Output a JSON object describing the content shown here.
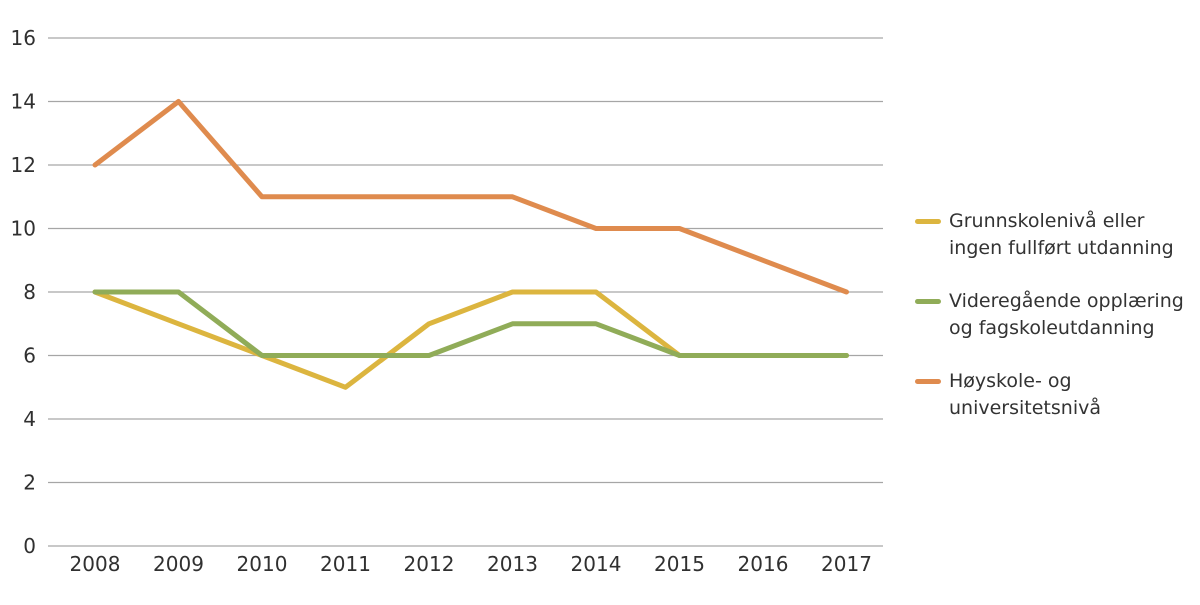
{
  "chart_data": {
    "type": "line",
    "title": "",
    "xlabel": "",
    "ylabel": "",
    "x": [
      2008,
      2009,
      2010,
      2011,
      2012,
      2013,
      2014,
      2015,
      2016,
      2017
    ],
    "series": [
      {
        "name": "Grunnskolenivå eller ingen fullført utdanning",
        "color": "#DCB53F",
        "values": [
          8,
          7,
          6,
          5,
          7,
          8,
          8,
          6,
          6,
          6
        ]
      },
      {
        "name": "Videregående opplæring og fagskoleutdanning",
        "color": "#90AC58",
        "values": [
          8,
          8,
          6,
          6,
          6,
          7,
          7,
          6,
          6,
          6
        ]
      },
      {
        "name": "Høyskole- og universitetsnivå",
        "color": "#DF8B4E",
        "values": [
          12,
          14,
          11,
          11,
          11,
          11,
          10,
          10,
          9,
          8
        ]
      }
    ],
    "ylim": [
      0,
      16
    ],
    "y_ticks": [
      0,
      2,
      4,
      6,
      8,
      10,
      12,
      14,
      16
    ],
    "grid": true,
    "legend_position": "right"
  },
  "axes": {
    "x_labels": [
      "2008",
      "2009",
      "2010",
      "2011",
      "2012",
      "2013",
      "2014",
      "2015",
      "2016",
      "2017"
    ],
    "y_labels": [
      "0",
      "2",
      "4",
      "6",
      "8",
      "10",
      "12",
      "14",
      "16"
    ]
  },
  "legend": {
    "items": [
      {
        "lines": [
          "Grunnskolenivå eller",
          "ingen fullført utdanning"
        ],
        "color": "#DCB53F"
      },
      {
        "lines": [
          "Videregående opplæring",
          "og fagskoleutdanning"
        ],
        "color": "#90AC58"
      },
      {
        "lines": [
          "Høyskole- og",
          "universitetsnivå"
        ],
        "color": "#DF8B4E"
      }
    ]
  },
  "colors": {
    "gridline": "#A6A6A6",
    "text": "#303030",
    "background": "#FFFFFF"
  }
}
